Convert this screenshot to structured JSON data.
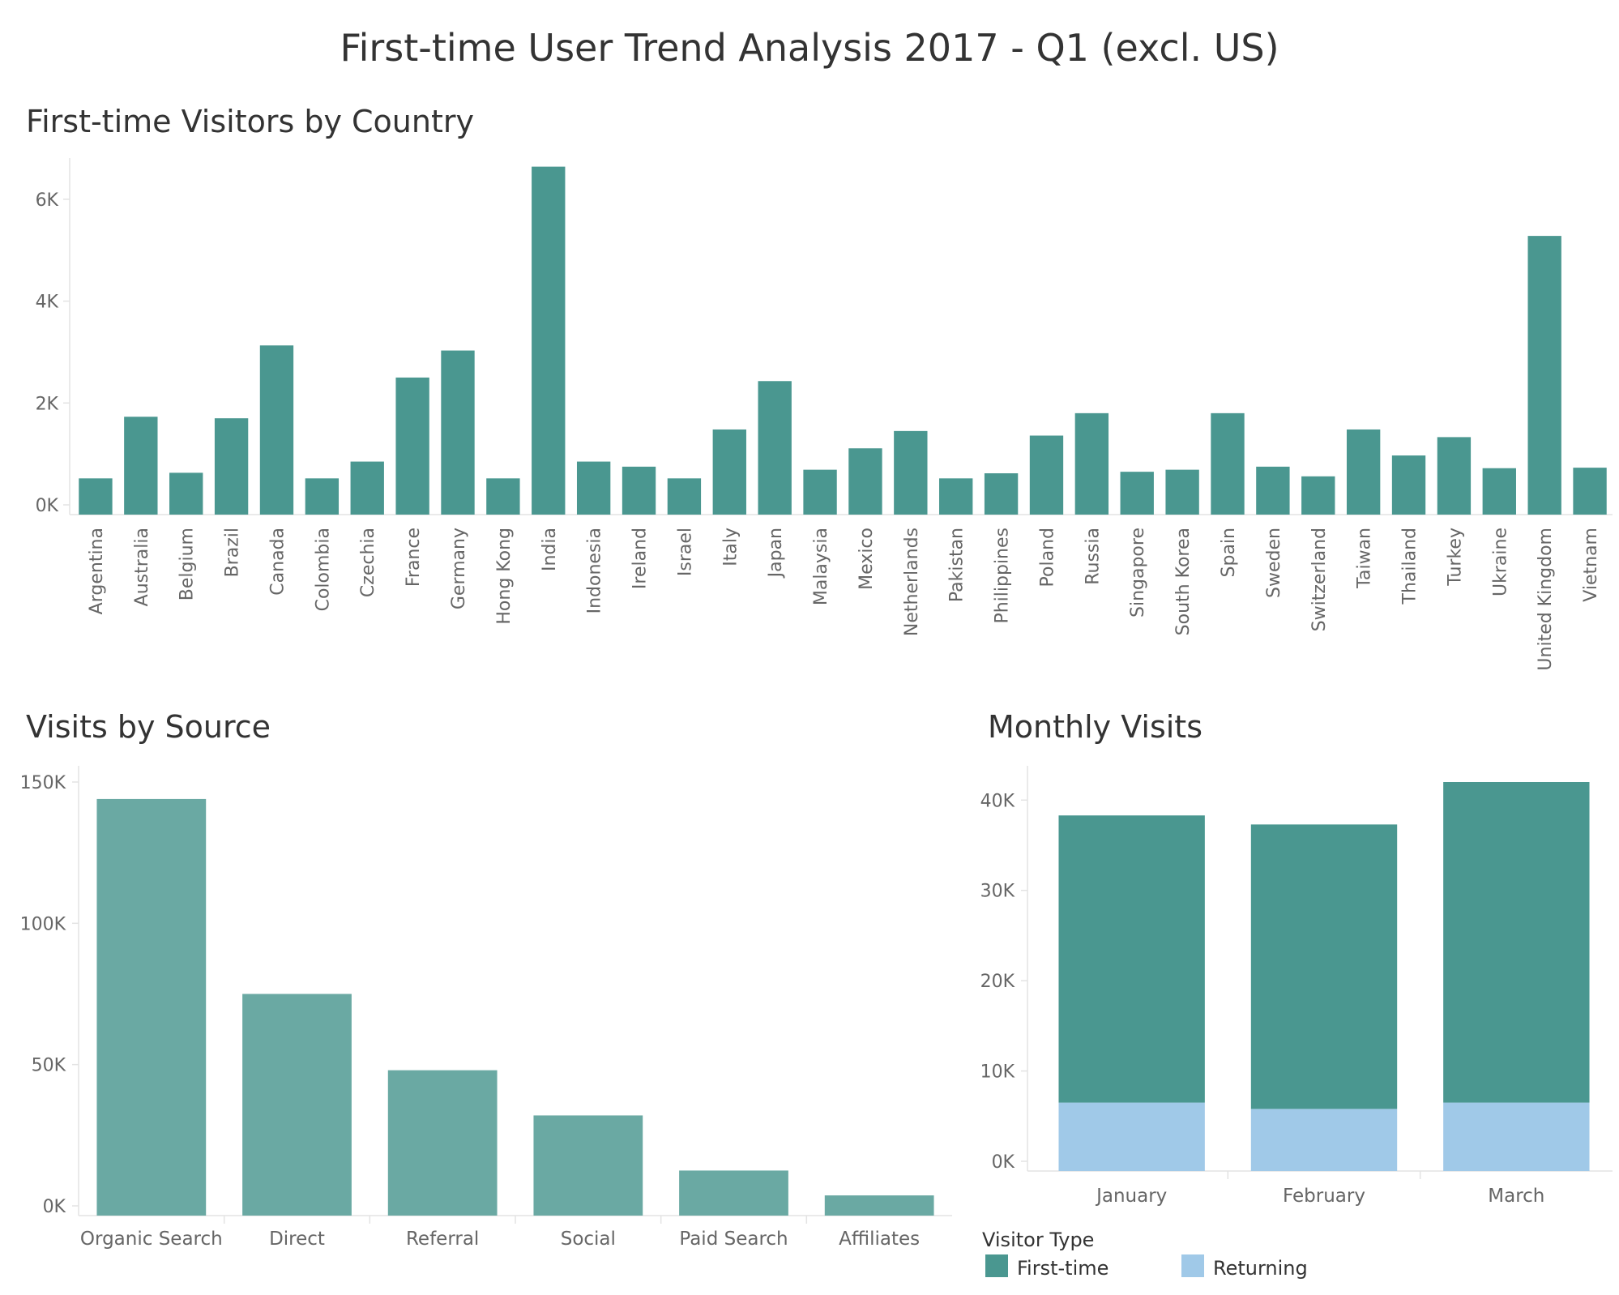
{
  "dashboard_title": "First-time User Trend Analysis 2017 - Q1 (excl. US)",
  "colors": {
    "first_time": "#4a9790",
    "returning": "#a0c9e8",
    "source_bar": "#6aa9a3",
    "axis_text": "#666666",
    "title_text": "#333333",
    "axis_line": "#e3e3e3"
  },
  "legend": {
    "title": "Visitor Type",
    "items": [
      {
        "label": "First-time",
        "color": "#4a9790"
      },
      {
        "label": "Returning",
        "color": "#a0c9e8"
      }
    ]
  },
  "chart_data": [
    {
      "type": "bar",
      "title": "First-time Visitors by Country",
      "xlabel": "",
      "ylabel": "",
      "ylim": [
        0,
        7000
      ],
      "yticks": [
        0,
        2000,
        4000,
        6000
      ],
      "ytick_labels": [
        "0K",
        "2K",
        "4K",
        "6K"
      ],
      "grid": false,
      "categories": [
        "Argentina",
        "Australia",
        "Belgium",
        "Brazil",
        "Canada",
        "Colombia",
        "Czechia",
        "France",
        "Germany",
        "Hong Kong",
        "India",
        "Indonesia",
        "Ireland",
        "Israel",
        "Italy",
        "Japan",
        "Malaysia",
        "Mexico",
        "Netherlands",
        "Pakistan",
        "Philippines",
        "Poland",
        "Russia",
        "Singapore",
        "South Korea",
        "Spain",
        "Sweden",
        "Switzerland",
        "Taiwan",
        "Thailand",
        "Turkey",
        "Ukraine",
        "United Kingdom",
        "Vietnam"
      ],
      "values": [
        520,
        1730,
        630,
        1700,
        3130,
        520,
        850,
        2500,
        3030,
        520,
        6640,
        850,
        750,
        520,
        1480,
        2430,
        690,
        1110,
        1450,
        520,
        620,
        1360,
        1800,
        650,
        690,
        1800,
        750,
        560,
        1480,
        970,
        1330,
        720,
        5280,
        730
      ]
    },
    {
      "type": "bar",
      "title": "Visits by Source",
      "xlabel": "",
      "ylabel": "",
      "ylim": [
        0,
        150000
      ],
      "yticks": [
        0,
        50000,
        100000,
        150000
      ],
      "ytick_labels": [
        "0K",
        "50K",
        "100K",
        "150K"
      ],
      "grid": false,
      "categories": [
        "Organic Search",
        "Direct",
        "Referral",
        "Social",
        "Paid Search",
        "Affiliates"
      ],
      "values": [
        144000,
        75000,
        48000,
        32000,
        12500,
        3700
      ]
    },
    {
      "type": "bar",
      "stacked": true,
      "title": "Monthly Visits",
      "xlabel": "",
      "ylabel": "",
      "ylim": [
        0,
        42000
      ],
      "yticks": [
        0,
        10000,
        20000,
        30000,
        40000
      ],
      "ytick_labels": [
        "0K",
        "10K",
        "20K",
        "30K",
        "40K"
      ],
      "grid": false,
      "legend_position": "bottom-right",
      "categories": [
        "January",
        "February",
        "March"
      ],
      "series": [
        {
          "name": "Returning",
          "values": [
            6500,
            5800,
            6500
          ]
        },
        {
          "name": "First-time",
          "values": [
            31800,
            31500,
            35500
          ]
        }
      ]
    }
  ]
}
